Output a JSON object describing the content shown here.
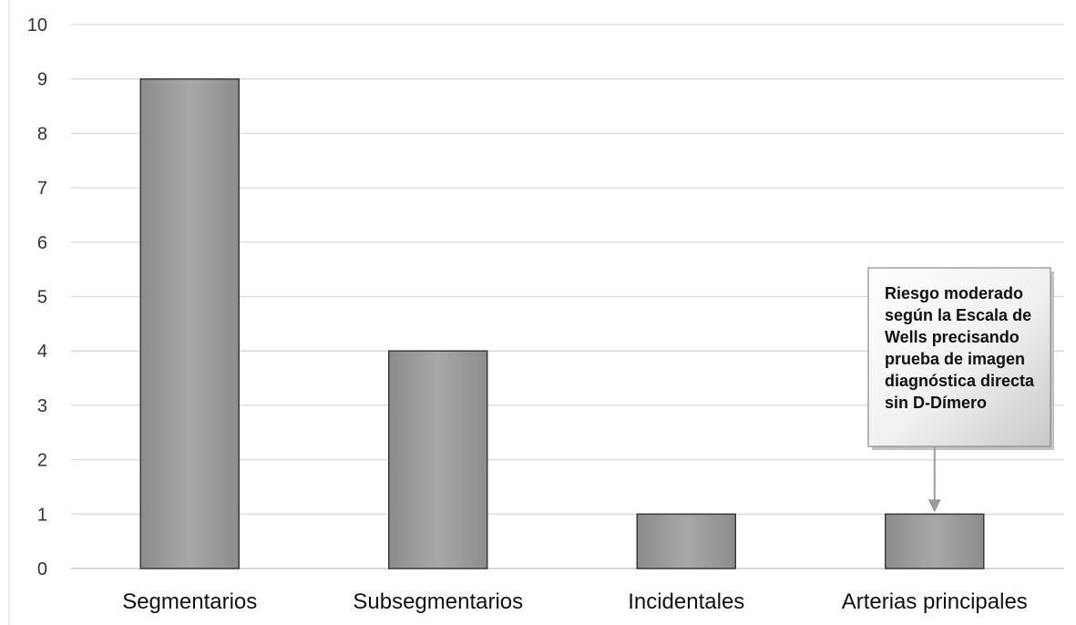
{
  "chart_data": {
    "type": "bar",
    "categories": [
      "Segmentarios",
      "Subsegmentarios",
      "Incidentales",
      "Arterias principales"
    ],
    "values": [
      9,
      4,
      1,
      1
    ],
    "title": "",
    "xlabel": "",
    "ylabel": "",
    "ylim": [
      0,
      10
    ],
    "yticks": [
      "0",
      "1",
      "2",
      "3",
      "4",
      "5",
      "6",
      "7",
      "8",
      "9",
      "10"
    ],
    "grid": true,
    "bar_color": "#9a9a9a",
    "annotation": {
      "target_category": "Arterias principales",
      "lines": [
        "Riesgo moderado",
        "según la Escala de",
        "Wells precisando",
        "prueba de imagen",
        "diagnóstica directa",
        "sin D-Dímero"
      ]
    }
  }
}
